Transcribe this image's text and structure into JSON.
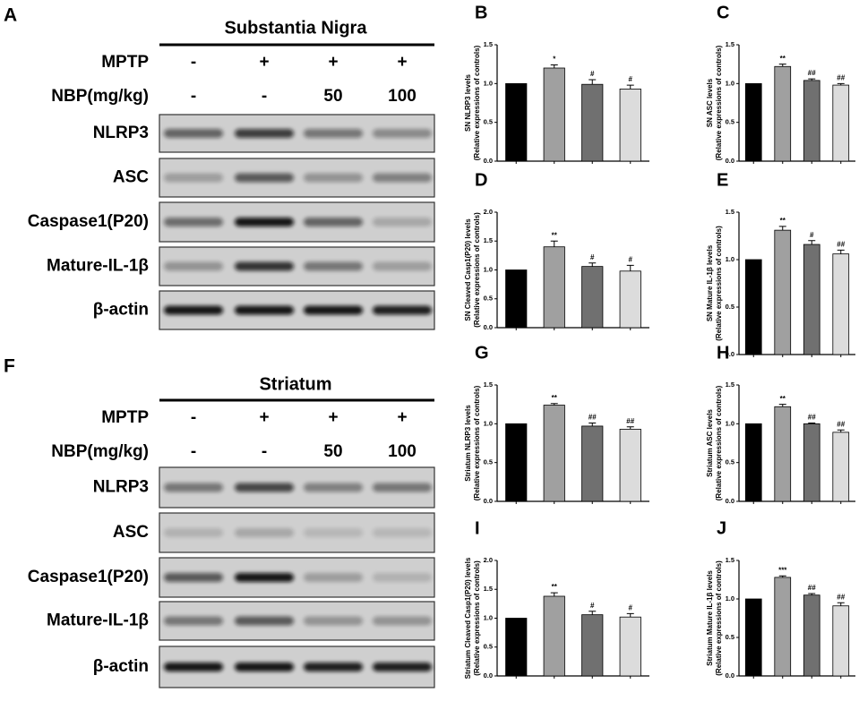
{
  "blots": [
    {
      "letter": "A",
      "title": "Substantia Nigra",
      "conditions": [
        {
          "label": "MPTP",
          "lanes": [
            "-",
            "+",
            "+",
            "+"
          ]
        },
        {
          "label": "NBP(mg/kg)",
          "lanes": [
            "-",
            "-",
            "50",
            "100"
          ]
        }
      ],
      "bands": [
        "NLRP3",
        "ASC",
        "Caspase1(P20)",
        "Mature-IL-1β",
        "β-actin"
      ]
    },
    {
      "letter": "F",
      "title": "Striatum",
      "conditions": [
        {
          "label": "MPTP",
          "lanes": [
            "-",
            "+",
            "+",
            "+"
          ]
        },
        {
          "label": "NBP(mg/kg)",
          "lanes": [
            "-",
            "-",
            "50",
            "100"
          ]
        }
      ],
      "bands": [
        "NLRP3",
        "ASC",
        "Caspase1(P20)",
        "Mature-IL-1β",
        "β-actin"
      ]
    }
  ],
  "chart_data": [
    {
      "type": "bar",
      "letter": "B",
      "ylabel": [
        "SN NLRP3 levels",
        "(Relative expressions of controls)"
      ],
      "categories": [
        null,
        null,
        null,
        null
      ],
      "values": [
        1.0,
        1.2,
        0.99,
        0.93
      ],
      "errors": [
        0,
        0.04,
        0.06,
        0.05
      ],
      "annotations": [
        null,
        "*",
        "#",
        "#"
      ],
      "colors": [
        "#000000",
        "#a0a0a0",
        "#707070",
        "#dcdcdc"
      ],
      "ylim": [
        0,
        1.5
      ],
      "yticks": [
        {
          "value": 0,
          "label": "0.0"
        },
        {
          "value": 0.5,
          "label": "0.5"
        },
        {
          "value": 1,
          "label": "1.0"
        },
        {
          "value": 1.5,
          "label": "1.5"
        }
      ]
    },
    {
      "type": "bar",
      "letter": "C",
      "ylabel": [
        "SN ASC levels",
        "(Relative expressions of controls)"
      ],
      "categories": [
        null,
        null,
        null,
        null
      ],
      "values": [
        1.0,
        1.22,
        1.04,
        0.98
      ],
      "errors": [
        0,
        0.03,
        0.02,
        0.02
      ],
      "annotations": [
        null,
        "**",
        "##",
        "##"
      ],
      "colors": [
        "#000000",
        "#a0a0a0",
        "#707070",
        "#dcdcdc"
      ],
      "ylim": [
        0,
        1.5
      ],
      "yticks": [
        {
          "value": 0,
          "label": "0.0"
        },
        {
          "value": 0.5,
          "label": "0.5"
        },
        {
          "value": 1,
          "label": "1.0"
        },
        {
          "value": 1.5,
          "label": "1.5"
        }
      ]
    },
    {
      "type": "bar",
      "letter": "D",
      "ylabel": [
        "SN Cleaved Casp1(P20) levels",
        "(Relative expressions of controls)"
      ],
      "categories": [
        null,
        null,
        null,
        null
      ],
      "values": [
        1.0,
        1.4,
        1.06,
        0.98
      ],
      "errors": [
        0,
        0.1,
        0.06,
        0.1
      ],
      "annotations": [
        null,
        "**",
        "#",
        "#"
      ],
      "colors": [
        "#000000",
        "#a0a0a0",
        "#707070",
        "#dcdcdc"
      ],
      "ylim": [
        0,
        2
      ],
      "yticks": [
        {
          "value": 0,
          "label": "0.0"
        },
        {
          "value": 0.5,
          "label": "0.5"
        },
        {
          "value": 1,
          "label": "1.0"
        },
        {
          "value": 1.5,
          "label": "1.5"
        },
        {
          "value": 2,
          "label": "2.0"
        }
      ]
    },
    {
      "type": "bar",
      "letter": "E",
      "ylabel": [
        "SN Mature IL-1β levels",
        "(Relative expressions of controls)"
      ],
      "categories": [
        null,
        null,
        null,
        null
      ],
      "values": [
        1.0,
        1.31,
        1.16,
        1.06
      ],
      "errors": [
        0,
        0.04,
        0.04,
        0.04
      ],
      "annotations": [
        null,
        "**",
        "#",
        "##"
      ],
      "colors": [
        "#000000",
        "#a0a0a0",
        "#707070",
        "#dcdcdc"
      ],
      "ylim": [
        0,
        1.5
      ],
      "yticks": [
        {
          "value": 0,
          "label": "0.0"
        },
        {
          "value": 0.5,
          "label": "0.5"
        },
        {
          "value": 1,
          "label": "1.0"
        },
        {
          "value": 1.5,
          "label": "1.5"
        }
      ]
    },
    {
      "type": "bar",
      "letter": "G",
      "ylabel": [
        "Striatum NLRP3 levels",
        "(Relative expressions of controls)"
      ],
      "categories": [
        null,
        null,
        null,
        null
      ],
      "values": [
        1.0,
        1.24,
        0.97,
        0.93
      ],
      "errors": [
        0,
        0.02,
        0.04,
        0.03
      ],
      "annotations": [
        null,
        "**",
        "##",
        "##"
      ],
      "colors": [
        "#000000",
        "#a0a0a0",
        "#707070",
        "#dcdcdc"
      ],
      "ylim": [
        0,
        1.5
      ],
      "yticks": [
        {
          "value": 0,
          "label": "0.0"
        },
        {
          "value": 0.5,
          "label": "0.5"
        },
        {
          "value": 1,
          "label": "1.0"
        },
        {
          "value": 1.5,
          "label": "1.5"
        }
      ]
    },
    {
      "type": "bar",
      "letter": "H",
      "ylabel": [
        "Striatum ASC levels",
        "(Relative expressions of controls)"
      ],
      "categories": [
        null,
        null,
        null,
        null
      ],
      "values": [
        1.0,
        1.22,
        1.0,
        0.89
      ],
      "errors": [
        0,
        0.03,
        0.01,
        0.03
      ],
      "annotations": [
        null,
        "**",
        "##",
        "##"
      ],
      "colors": [
        "#000000",
        "#a0a0a0",
        "#707070",
        "#dcdcdc"
      ],
      "ylim": [
        0,
        1.5
      ],
      "yticks": [
        {
          "value": 0,
          "label": "0.0"
        },
        {
          "value": 0.5,
          "label": "0.5"
        },
        {
          "value": 1,
          "label": "1.0"
        },
        {
          "value": 1.5,
          "label": "1.5"
        }
      ]
    },
    {
      "type": "bar",
      "letter": "I",
      "ylabel": [
        "Striatum Cleaved Casp1(P20) levels",
        "(Relative expressions of controls)"
      ],
      "categories": [
        null,
        null,
        null,
        null
      ],
      "values": [
        1.0,
        1.38,
        1.06,
        1.02
      ],
      "errors": [
        0,
        0.06,
        0.06,
        0.06
      ],
      "annotations": [
        null,
        "**",
        "#",
        "#"
      ],
      "colors": [
        "#000000",
        "#a0a0a0",
        "#707070",
        "#dcdcdc"
      ],
      "ylim": [
        0,
        2
      ],
      "yticks": [
        {
          "value": 0,
          "label": "0.0"
        },
        {
          "value": 0.5,
          "label": "0.5"
        },
        {
          "value": 1,
          "label": "1.0"
        },
        {
          "value": 1.5,
          "label": "1.5"
        },
        {
          "value": 2,
          "label": "2.0"
        }
      ]
    },
    {
      "type": "bar",
      "letter": "J",
      "ylabel": [
        "Striatum Mature IL-1β levels",
        "(Relative expressions of controls)"
      ],
      "categories": [
        null,
        null,
        null,
        null
      ],
      "values": [
        1.0,
        1.28,
        1.05,
        0.91
      ],
      "errors": [
        0,
        0.02,
        0.02,
        0.04
      ],
      "annotations": [
        null,
        "***",
        "##",
        "##"
      ],
      "colors": [
        "#000000",
        "#a0a0a0",
        "#707070",
        "#dcdcdc"
      ],
      "ylim": [
        0,
        1.5
      ],
      "yticks": [
        {
          "value": 0,
          "label": "0.0"
        },
        {
          "value": 0.5,
          "label": "0.5"
        },
        {
          "value": 1,
          "label": "1.0"
        },
        {
          "value": 1.5,
          "label": "1.5"
        }
      ]
    }
  ]
}
